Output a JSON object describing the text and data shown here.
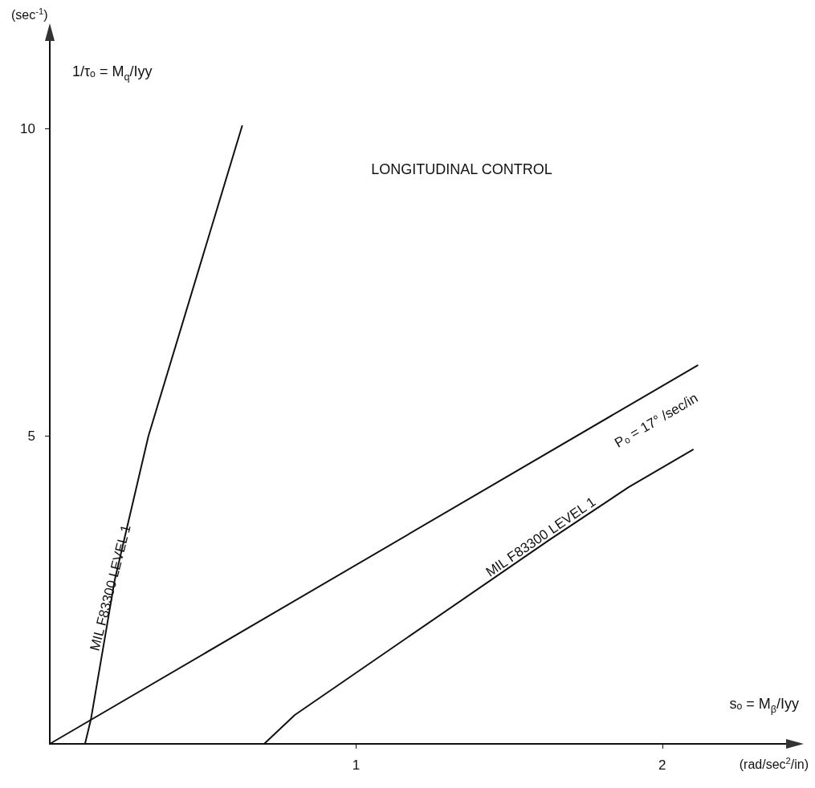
{
  "chart_data": {
    "type": "line",
    "title": "LONGITUDINAL CONTROL",
    "xlabel": "(rad/sec$^{2}$/in)",
    "ylabel": "(sec$^{-1}$)",
    "annotations": [
      "1/τₒ = M$_{q}$/Iyy",
      "sₒ = M$_{β}$/Iyy"
    ],
    "series": [
      {
        "name": "MIL F83300 LEVEL 1",
        "color": "#111111",
        "x": [
          0.115,
          0.134,
          0.212,
          0.322,
          0.628
        ],
        "values": [
          0,
          0.39,
          2.66,
          5.0,
          10.04
        ]
      },
      {
        "name": "Pₒ = 17° /sec/in",
        "color": "#111111",
        "x": [
          0,
          2.115
        ],
        "values": [
          0,
          6.15
        ]
      },
      {
        "name": "MIL F83300 LEVEL 1",
        "color": "#111111",
        "x": [
          0.7,
          0.8,
          1.63,
          1.89,
          2.1
        ],
        "values": [
          0,
          0.47,
          3.31,
          4.17,
          4.78
        ]
      }
    ],
    "xlim": [
      0,
      2.42
    ],
    "xticks": [
      1,
      2
    ],
    "ylim": [
      0,
      11.5
    ],
    "yticks": [
      5,
      10
    ],
    "grid": false,
    "legend": false,
    "marker": "none",
    "line_style": "solid"
  }
}
